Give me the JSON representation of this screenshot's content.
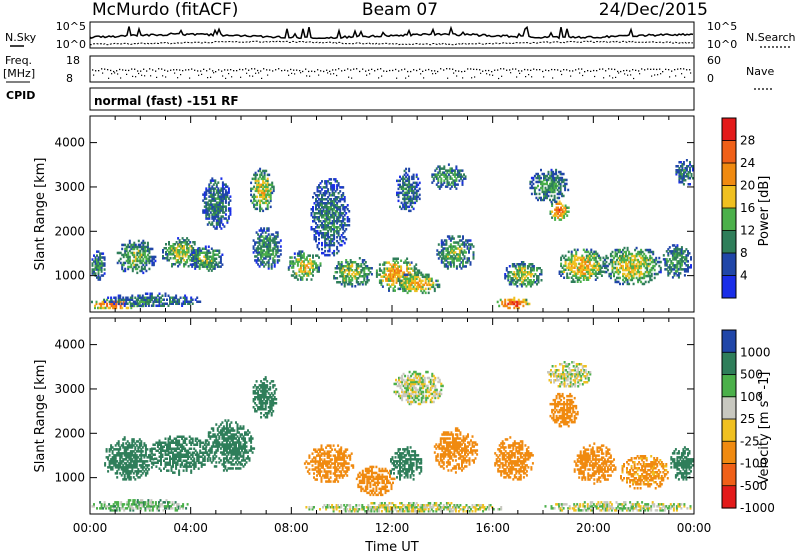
{
  "header": {
    "station": "McMurdo (fitACF)",
    "beam": "Beam 07",
    "date": "24/Dec/2015"
  },
  "top_panels": {
    "nsky_label": "N.Sky",
    "nsearch_label": "N.Search",
    "noise_ticks_left": [
      "10^5",
      "10^0"
    ],
    "noise_ticks_right": [
      "10^5",
      "10^0"
    ],
    "freq_label": "Freq.",
    "freq_unit": "[MHz]",
    "freq_ticks": [
      "18",
      "8"
    ],
    "nave_label": "Nave",
    "nave_ticks": [
      "60",
      "0"
    ],
    "cpid_label": "CPID",
    "cpid_text": "normal (fast) -151 RF"
  },
  "colors": {
    "power_scale": [
      "#1a2ee8",
      "#2046a8",
      "#2f7e5a",
      "#4bb04a",
      "#f0c020",
      "#f08a10",
      "#f06018",
      "#e31a1a"
    ],
    "velocity_scale": [
      "#e31a1a",
      "#f06018",
      "#f08a10",
      "#f0c020",
      "#c8c8c0",
      "#4bb04a",
      "#2f7e5a",
      "#2046a8"
    ]
  },
  "chart_data": [
    {
      "type": "heatmap",
      "title": "Power",
      "ylabel": "Slant Range [km]",
      "xlabel": "",
      "x_ticks": [
        "00:00",
        "04:00",
        "08:00",
        "12:00",
        "16:00",
        "20:00",
        "00:00"
      ],
      "x_hours": [
        0,
        4,
        8,
        12,
        16,
        20,
        24
      ],
      "xlim": [
        0,
        24
      ],
      "y_ticks": [
        1000,
        2000,
        3000,
        4000
      ],
      "ylim": [
        180,
        4600
      ],
      "colorbar": {
        "label": "Power [dB]",
        "ticks": [
          "4",
          "8",
          "12",
          "16",
          "20",
          "24",
          "28"
        ],
        "boundaries": [
          0,
          4,
          8,
          12,
          16,
          20,
          24,
          28,
          32
        ]
      },
      "blobs": [
        {
          "t": 0.3,
          "r": 1200,
          "dt": 0.3,
          "dr": 350,
          "dB": 12
        },
        {
          "t": 1.0,
          "r": 330,
          "dt": 1.2,
          "dr": 120,
          "dB": 26
        },
        {
          "t": 2.5,
          "r": 420,
          "dt": 2.0,
          "dr": 160,
          "dB": 10
        },
        {
          "t": 1.8,
          "r": 1400,
          "dt": 0.8,
          "dr": 400,
          "dB": 14
        },
        {
          "t": 3.6,
          "r": 1500,
          "dt": 0.8,
          "dr": 350,
          "dB": 16
        },
        {
          "t": 4.6,
          "r": 1350,
          "dt": 0.7,
          "dr": 300,
          "dB": 14
        },
        {
          "t": 5.0,
          "r": 2600,
          "dt": 0.6,
          "dr": 600,
          "dB": 10
        },
        {
          "t": 6.8,
          "r": 2900,
          "dt": 0.5,
          "dr": 500,
          "dB": 18
        },
        {
          "t": 7.0,
          "r": 1600,
          "dt": 0.6,
          "dr": 500,
          "dB": 12
        },
        {
          "t": 8.5,
          "r": 1200,
          "dt": 0.7,
          "dr": 350,
          "dB": 18
        },
        {
          "t": 9.5,
          "r": 2300,
          "dt": 0.8,
          "dr": 900,
          "dB": 10
        },
        {
          "t": 10.4,
          "r": 1050,
          "dt": 0.8,
          "dr": 350,
          "dB": 16
        },
        {
          "t": 12.2,
          "r": 1000,
          "dt": 0.9,
          "dr": 400,
          "dB": 22
        },
        {
          "t": 12.6,
          "r": 2900,
          "dt": 0.5,
          "dr": 500,
          "dB": 10
        },
        {
          "t": 13.0,
          "r": 800,
          "dt": 0.9,
          "dr": 250,
          "dB": 20
        },
        {
          "t": 14.2,
          "r": 3200,
          "dt": 0.7,
          "dr": 300,
          "dB": 12
        },
        {
          "t": 14.5,
          "r": 1500,
          "dt": 0.8,
          "dr": 400,
          "dB": 14
        },
        {
          "t": 16.8,
          "r": 350,
          "dt": 0.7,
          "dr": 140,
          "dB": 28
        },
        {
          "t": 17.2,
          "r": 1000,
          "dt": 0.8,
          "dr": 300,
          "dB": 16
        },
        {
          "t": 18.6,
          "r": 2450,
          "dt": 0.4,
          "dr": 250,
          "dB": 25
        },
        {
          "t": 18.2,
          "r": 3000,
          "dt": 0.8,
          "dr": 400,
          "dB": 12
        },
        {
          "t": 19.5,
          "r": 1200,
          "dt": 1.0,
          "dr": 400,
          "dB": 20
        },
        {
          "t": 21.5,
          "r": 1200,
          "dt": 1.2,
          "dr": 450,
          "dB": 18
        },
        {
          "t": 23.3,
          "r": 1300,
          "dt": 0.6,
          "dr": 400,
          "dB": 12
        },
        {
          "t": 23.6,
          "r": 3300,
          "dt": 0.4,
          "dr": 300,
          "dB": 10
        }
      ]
    },
    {
      "type": "heatmap",
      "title": "Velocity",
      "ylabel": "Slant Range [km]",
      "xlabel": "Time UT",
      "x_ticks": [
        "00:00",
        "04:00",
        "08:00",
        "12:00",
        "16:00",
        "20:00",
        "00:00"
      ],
      "x_hours": [
        0,
        4,
        8,
        12,
        16,
        20,
        24
      ],
      "xlim": [
        0,
        24
      ],
      "y_ticks": [
        1000,
        2000,
        3000,
        4000
      ],
      "ylim": [
        180,
        4600
      ],
      "colorbar": {
        "label": "Velocity [m s^-1]",
        "ticks": [
          "1000",
          "500",
          "100",
          "25",
          "-25",
          "-100",
          "-500",
          "-1000"
        ],
        "boundaries": [
          -1500,
          -1000,
          -500,
          -100,
          -25,
          25,
          100,
          500,
          1000,
          1500
        ]
      },
      "blobs": [
        {
          "t": 1.5,
          "r": 1400,
          "dt": 1.0,
          "dr": 500,
          "v": 300
        },
        {
          "t": 3.5,
          "r": 1500,
          "dt": 1.2,
          "dr": 450,
          "v": 350
        },
        {
          "t": 5.5,
          "r": 1700,
          "dt": 1.0,
          "dr": 600,
          "v": 300
        },
        {
          "t": 6.9,
          "r": 2800,
          "dt": 0.5,
          "dr": 500,
          "v": 250
        },
        {
          "t": 2.0,
          "r": 350,
          "dt": 2.0,
          "dr": 150,
          "v": 60
        },
        {
          "t": 9.5,
          "r": 1300,
          "dt": 1.0,
          "dr": 450,
          "v": -200
        },
        {
          "t": 11.3,
          "r": 900,
          "dt": 0.8,
          "dr": 350,
          "v": -300
        },
        {
          "t": 12.5,
          "r": 1300,
          "dt": 0.7,
          "dr": 400,
          "v": 200
        },
        {
          "t": 13.0,
          "r": 3000,
          "dt": 1.0,
          "dr": 400,
          "v": 0
        },
        {
          "t": 14.5,
          "r": 1600,
          "dt": 0.9,
          "dr": 500,
          "v": -200
        },
        {
          "t": 16.8,
          "r": 1400,
          "dt": 0.8,
          "dr": 500,
          "v": -300
        },
        {
          "t": 18.8,
          "r": 2500,
          "dt": 0.6,
          "dr": 400,
          "v": -250
        },
        {
          "t": 19.0,
          "r": 3300,
          "dt": 0.9,
          "dr": 300,
          "v": 0
        },
        {
          "t": 20.0,
          "r": 1300,
          "dt": 0.9,
          "dr": 450,
          "v": -200
        },
        {
          "t": 22.0,
          "r": 1100,
          "dt": 1.0,
          "dr": 400,
          "v": -150
        },
        {
          "t": 23.5,
          "r": 1300,
          "dt": 0.5,
          "dr": 400,
          "v": 200
        },
        {
          "t": 12.5,
          "r": 300,
          "dt": 4.0,
          "dr": 120,
          "v": 0
        },
        {
          "t": 21.0,
          "r": 320,
          "dt": 3.0,
          "dr": 120,
          "v": 10
        }
      ]
    }
  ]
}
